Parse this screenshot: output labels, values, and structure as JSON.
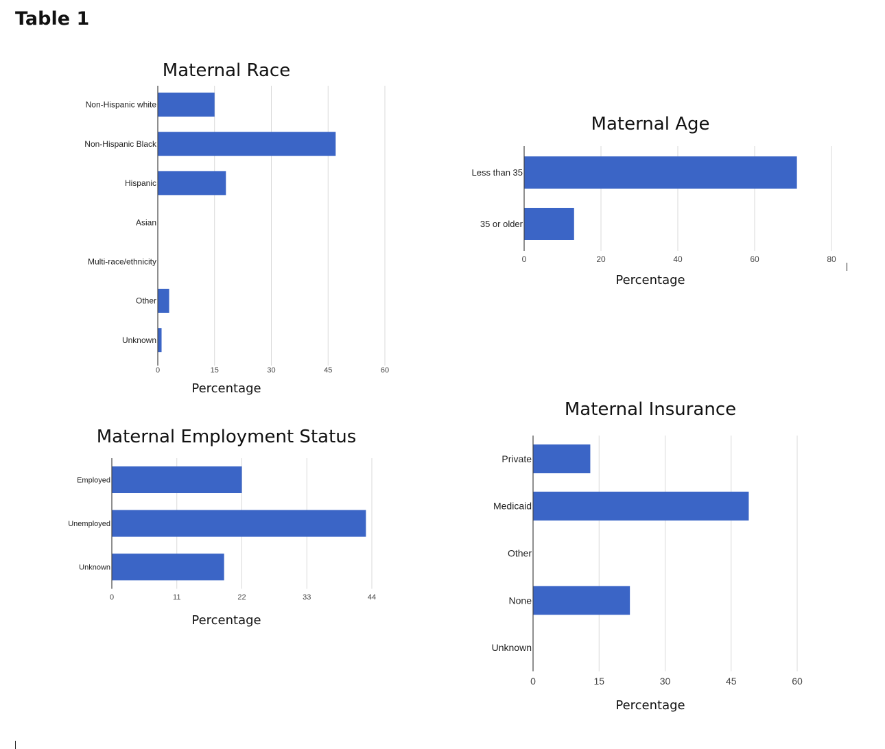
{
  "page": {
    "heading": "Table 1"
  },
  "colors": {
    "bar": "#3b65c6",
    "grid": "#d9d9d9",
    "axis": "#444444"
  },
  "chart_data": [
    {
      "id": "race",
      "type": "bar",
      "orientation": "horizontal",
      "title": "Maternal Race",
      "xlabel": "Percentage",
      "ylabel": "",
      "categories": [
        "Non-Hispanic white",
        "Non-Hispanic Black",
        "Hispanic",
        "Asian",
        "Multi-race/ethnicity",
        "Other",
        "Unknown"
      ],
      "values": [
        15,
        47,
        18,
        0,
        0,
        3,
        1
      ],
      "xlim": [
        0,
        60
      ],
      "ticks": [
        "0",
        "15",
        "30",
        "45",
        "60"
      ],
      "grid": true,
      "legend": "none"
    },
    {
      "id": "age",
      "type": "bar",
      "orientation": "horizontal",
      "title": "Maternal Age",
      "xlabel": "Percentage",
      "ylabel": "",
      "categories": [
        "Less than 35",
        "35 or older"
      ],
      "values": [
        71,
        13
      ],
      "xlim": [
        0,
        80
      ],
      "ticks": [
        "0",
        "20",
        "40",
        "60",
        "80"
      ],
      "grid": true,
      "legend": "none"
    },
    {
      "id": "employment",
      "type": "bar",
      "orientation": "horizontal",
      "title": "Maternal Employment Status",
      "xlabel": "Percentage",
      "ylabel": "",
      "categories": [
        "Employed",
        "Unemployed",
        "Unknown"
      ],
      "values": [
        22,
        43,
        19
      ],
      "xlim": [
        0,
        44
      ],
      "ticks": [
        "0",
        "11",
        "22",
        "33",
        "44"
      ],
      "grid": true,
      "legend": "none"
    },
    {
      "id": "insurance",
      "type": "bar",
      "orientation": "horizontal",
      "title": "Maternal Insurance",
      "xlabel": "Percentage",
      "ylabel": "",
      "categories": [
        "Private",
        "Medicaid",
        "Other",
        "None",
        "Unknown"
      ],
      "values": [
        13,
        49,
        0,
        22,
        0
      ],
      "xlim": [
        0,
        60
      ],
      "ticks": [
        "0",
        "15",
        "30",
        "45",
        "60"
      ],
      "grid": true,
      "legend": "none"
    }
  ]
}
